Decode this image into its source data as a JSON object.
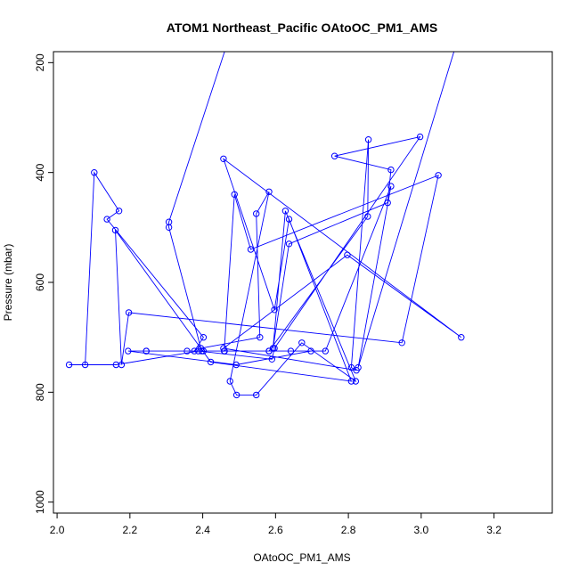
{
  "chart_data": {
    "type": "line",
    "title": "ATOM1 Northeast_Pacific OAtoOC_PM1_AMS",
    "xlabel": "OAtoOC_PM1_AMS",
    "ylabel": "Pressure (mbar)",
    "xlim": [
      1.99,
      3.36
    ],
    "ylim": [
      1020,
      180
    ],
    "y_inverted": true,
    "x_ticks": [
      "2.0",
      "2.2",
      "2.4",
      "2.6",
      "2.8",
      "3.0",
      "3.2"
    ],
    "x_tick_values": [
      2.0,
      2.2,
      2.4,
      2.6,
      2.8,
      3.0,
      3.2
    ],
    "y_ticks": [
      "200",
      "400",
      "600",
      "800",
      "1000"
    ],
    "y_tick_values": [
      200,
      400,
      600,
      800,
      1000
    ],
    "grid": false,
    "legend": "none",
    "series": [
      {
        "color": "#0000ff",
        "marker": "open-circle",
        "line_only_start": {
          "x": 2.46,
          "y": 180
        },
        "line_only_end": {
          "x": 3.09,
          "y": 180
        },
        "x": [
          2.307,
          2.307,
          2.395,
          2.557,
          2.547,
          2.582,
          2.475,
          2.493,
          2.547,
          2.672,
          2.82,
          2.627,
          2.593,
          2.637,
          2.908,
          2.917,
          2.762,
          2.997,
          2.597,
          2.59,
          2.388,
          2.162,
          2.033,
          2.077,
          2.102,
          2.17,
          2.137,
          2.402,
          2.377,
          2.245,
          2.245,
          2.357,
          2.397,
          2.582,
          2.853,
          2.855,
          2.808,
          2.822,
          2.457,
          2.797,
          3.11,
          2.457,
          2.597,
          2.637,
          2.808,
          2.422,
          2.16,
          2.177,
          2.197,
          2.947,
          3.047,
          2.532,
          2.487,
          2.459,
          2.642,
          2.697,
          2.492,
          2.195,
          2.46,
          2.582,
          2.402,
          2.737,
          2.917,
          2.827
        ],
        "y": [
          490,
          500,
          720,
          700,
          475,
          435,
          780,
          805,
          805,
          710,
          780,
          470,
          720,
          530,
          455,
          395,
          370,
          335,
          720,
          740,
          725,
          750,
          750,
          750,
          400,
          470,
          485,
          700,
          725,
          725,
          725,
          725,
          725,
          725,
          480,
          340,
          755,
          760,
          720,
          550,
          700,
          375,
          650,
          485,
          780,
          745,
          505,
          750,
          655,
          710,
          405,
          540,
          440,
          725,
          725,
          725,
          750,
          725,
          725,
          725,
          725,
          725,
          425,
          755
        ]
      }
    ]
  }
}
